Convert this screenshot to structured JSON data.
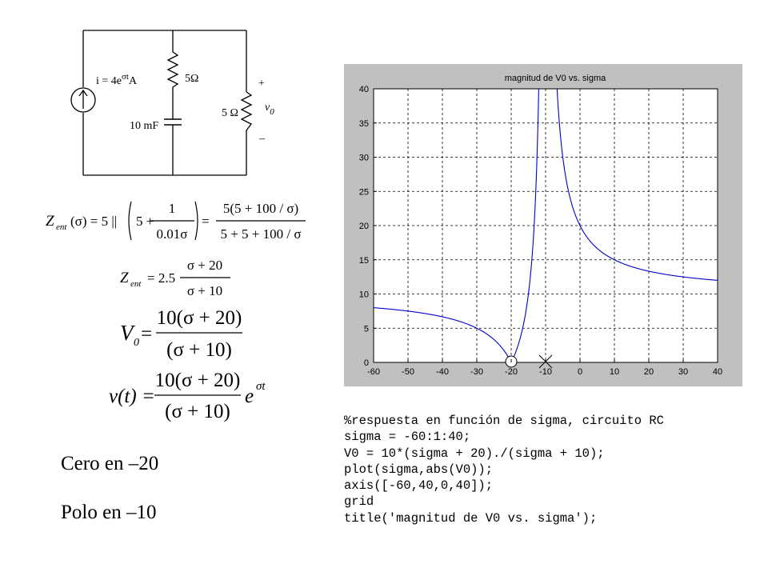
{
  "circuit": {
    "source_label": "i = 4e",
    "source_exp": "σt",
    "source_unit": "A",
    "r1_label": "5Ω",
    "c_label": "10 mF",
    "r2_label": "5 Ω",
    "plus": "+",
    "minus": "–",
    "vout": "v",
    "vout_sub": "0"
  },
  "equations": {
    "z_ent_full": {
      "lhs": "Z",
      "lhs_sub": "ent",
      "arg": "(σ) = 5 ||",
      "frac1_num": "1",
      "frac1_den": "0.01σ",
      "five": "5 +",
      "equals": "=",
      "frac2_num": "5(5 + 100 / σ)",
      "frac2_den": "5 + 5 + 100 / σ"
    },
    "z_ent_simple": {
      "lhs": "Z",
      "lhs_sub": "ent",
      "coef": "= 2.5",
      "num": "σ + 20",
      "den": "σ + 10"
    },
    "v0": {
      "lhs": "V",
      "lhs_sub": "0",
      "eq": "=",
      "num": "10(σ + 20)",
      "den": "(σ + 10)"
    },
    "vt": {
      "lhs": "v(t) =",
      "num": "10(σ + 20)",
      "den": "(σ + 10)",
      "exp_base": "e",
      "exp": "σt"
    }
  },
  "notes": {
    "zero": "Cero en –20",
    "pole": "Polo en –10"
  },
  "code": [
    "%respuesta en función de sigma, circuito RC",
    "sigma = -60:1:40;",
    "V0 = 10*(sigma + 20)./(sigma + 10);",
    "plot(sigma,abs(V0));",
    "axis([-60,40,0,40]);",
    "grid",
    "title('magnitud de V0 vs. sigma');"
  ],
  "chart_data": {
    "type": "line",
    "title": "magnitud de V0 vs. sigma",
    "xlabel": "",
    "ylabel": "",
    "xlim": [
      -60,
      40
    ],
    "ylim": [
      0,
      40
    ],
    "xticks": [
      -60,
      -50,
      -40,
      -30,
      -20,
      -10,
      0,
      10,
      20,
      30,
      40
    ],
    "yticks": [
      0,
      5,
      10,
      15,
      20,
      25,
      30,
      35,
      40
    ],
    "grid": true,
    "series": [
      {
        "expression": "abs(10*(sigma + 20)./(sigma + 10))",
        "x_start": -60,
        "x_end": 40,
        "x_step": 1,
        "color": "#0000cc"
      }
    ],
    "markers": [
      {
        "kind": "zero-circle",
        "x": -20,
        "y": 0
      },
      {
        "kind": "pole-cross",
        "x": -10,
        "y": 0
      }
    ]
  }
}
